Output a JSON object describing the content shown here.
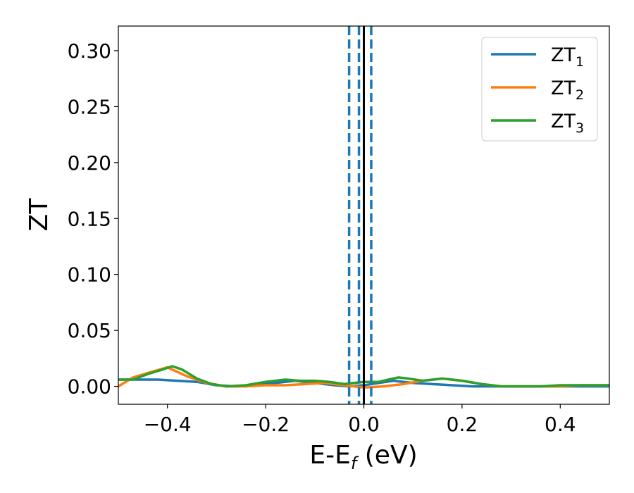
{
  "chart_data": {
    "type": "line",
    "xlabel": "E-E",
    "xlabel_sub": "f",
    "xlabel_unit": " (eV)",
    "ylabel": "ZT",
    "xlim": [
      -0.5,
      0.5
    ],
    "ylim": [
      -0.016,
      0.322
    ],
    "xticks": [
      -0.4,
      -0.2,
      0.0,
      0.2,
      0.4
    ],
    "xtick_labels": [
      "−0.4",
      "−0.2",
      "0.0",
      "0.2",
      "0.4"
    ],
    "yticks": [
      0.0,
      0.05,
      0.1,
      0.15,
      0.2,
      0.25,
      0.3
    ],
    "ytick_labels": [
      "0.00",
      "0.05",
      "0.10",
      "0.15",
      "0.20",
      "0.25",
      "0.30"
    ],
    "grid": false,
    "legend_placement": "top-right",
    "series": [
      {
        "name": "ZT",
        "sub": "1",
        "color": "#1f77b4",
        "x": [
          -0.5,
          -0.46,
          -0.42,
          -0.38,
          -0.34,
          -0.3,
          -0.26,
          -0.22,
          -0.18,
          -0.14,
          -0.1,
          -0.06,
          -0.03,
          0.0,
          0.03,
          0.06,
          0.1,
          0.14,
          0.18,
          0.22,
          0.26,
          0.3,
          0.34,
          0.38,
          0.42,
          0.46,
          0.5
        ],
        "y": [
          0.006,
          0.006,
          0.006,
          0.005,
          0.004,
          0.001,
          0.0,
          0.001,
          0.003,
          0.005,
          0.003,
          0.001,
          0.0,
          0.001,
          0.003,
          0.005,
          0.003,
          0.002,
          0.001,
          0.0,
          0.0,
          0.0,
          0.0,
          0.0,
          0.0,
          0.0,
          0.0
        ]
      },
      {
        "name": "ZT",
        "sub": "2",
        "color": "#ff7f0e",
        "x": [
          -0.5,
          -0.47,
          -0.44,
          -0.4,
          -0.36,
          -0.32,
          -0.28,
          -0.24,
          -0.2,
          -0.16,
          -0.12,
          -0.08,
          -0.04,
          0.0,
          0.04,
          0.08,
          0.12,
          0.16,
          0.2,
          0.24,
          0.28,
          0.32,
          0.36,
          0.4,
          0.44,
          0.5
        ],
        "y": [
          0.0,
          0.008,
          0.012,
          0.017,
          0.009,
          0.003,
          0.0,
          0.0,
          0.001,
          0.001,
          0.002,
          0.003,
          0.001,
          -0.001,
          0.0,
          0.002,
          0.005,
          0.007,
          0.005,
          0.002,
          0.0,
          0.0,
          0.0,
          0.0,
          0.001,
          0.001
        ]
      },
      {
        "name": "ZT",
        "sub": "3",
        "color": "#2ca02c",
        "x": [
          -0.5,
          -0.47,
          -0.44,
          -0.41,
          -0.39,
          -0.37,
          -0.34,
          -0.31,
          -0.28,
          -0.24,
          -0.2,
          -0.16,
          -0.13,
          -0.1,
          -0.07,
          -0.04,
          -0.02,
          0.0,
          0.03,
          0.05,
          0.07,
          0.09,
          0.12,
          0.16,
          0.2,
          0.24,
          0.28,
          0.32,
          0.36,
          0.4,
          0.44,
          0.5
        ],
        "y": [
          0.006,
          0.006,
          0.011,
          0.015,
          0.018,
          0.015,
          0.007,
          0.002,
          0.0,
          0.001,
          0.004,
          0.006,
          0.005,
          0.005,
          0.004,
          0.002,
          0.003,
          0.004,
          0.004,
          0.006,
          0.008,
          0.007,
          0.005,
          0.007,
          0.005,
          0.002,
          0.0,
          0.0,
          0.0,
          0.001,
          0.001,
          0.001
        ]
      }
    ],
    "vlines": [
      {
        "x": -0.03,
        "style": "dashed",
        "color": "#1f77b4"
      },
      {
        "x": -0.01,
        "style": "dashed",
        "color": "#1f77b4"
      },
      {
        "x": 0.015,
        "style": "dashed",
        "color": "#1f77b4"
      },
      {
        "x": 0.0,
        "style": "solid",
        "color": "#000000"
      }
    ]
  }
}
